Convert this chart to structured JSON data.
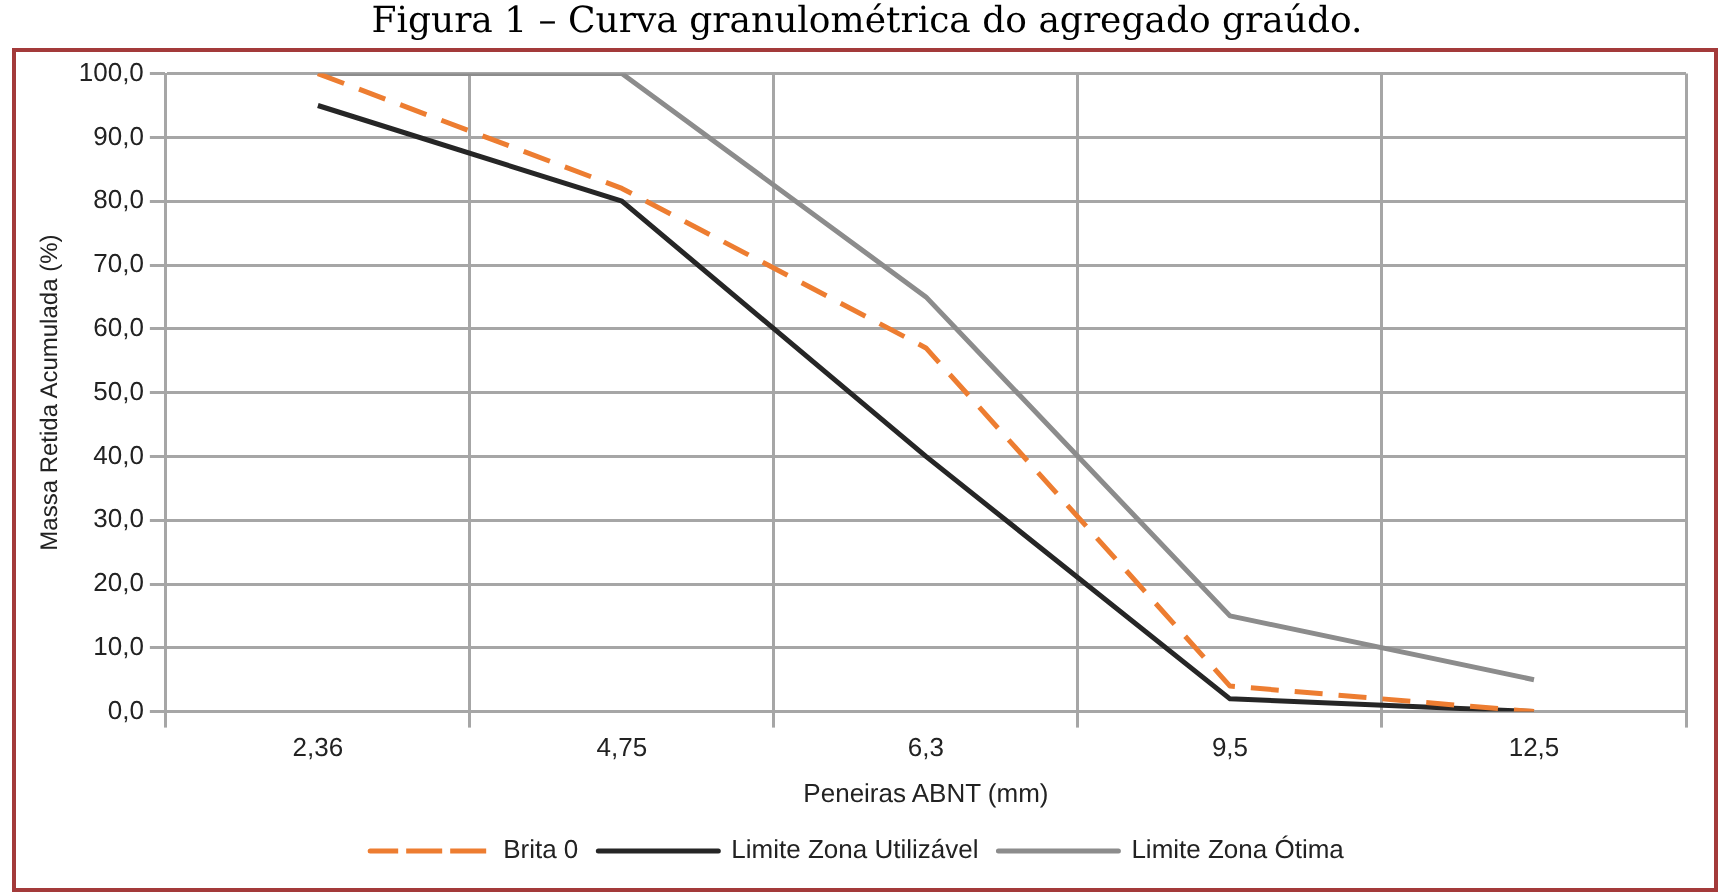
{
  "chart_data": {
    "type": "line",
    "title": "Figura 1 – Curva granulométrica do agregado graúdo.",
    "xlabel": "Peneiras ABNT (mm)",
    "ylabel": "Massa Retida Acumulada (%)",
    "categories": [
      "2,36",
      "4,75",
      "6,3",
      "9,5",
      "12,5"
    ],
    "ylim": [
      0,
      100
    ],
    "yticks": [
      {
        "value": 0,
        "label": "0,0"
      },
      {
        "value": 10,
        "label": "10,0"
      },
      {
        "value": 20,
        "label": "20,0"
      },
      {
        "value": 30,
        "label": "30,0"
      },
      {
        "value": 40,
        "label": "40,0"
      },
      {
        "value": 50,
        "label": "50,0"
      },
      {
        "value": 60,
        "label": "60,0"
      },
      {
        "value": 70,
        "label": "70,0"
      },
      {
        "value": 80,
        "label": "80,0"
      },
      {
        "value": 90,
        "label": "90,0"
      },
      {
        "value": 100,
        "label": "100,0"
      }
    ],
    "grid": true,
    "legend": "bottom",
    "marker": "none",
    "series": [
      {
        "name": "Brita 0",
        "color": "#ed7d31",
        "line_style": "dashed",
        "values": [
          100,
          82,
          57,
          4,
          0
        ]
      },
      {
        "name": "Limite Zona Utilizável",
        "color": "#262626",
        "line_style": "solid",
        "values": [
          95,
          80,
          40,
          2,
          0
        ]
      },
      {
        "name": "Limite Zona Ótima",
        "color": "#8c8c8c",
        "line_style": "solid",
        "values": [
          100,
          100,
          65,
          15,
          5
        ]
      }
    ]
  }
}
